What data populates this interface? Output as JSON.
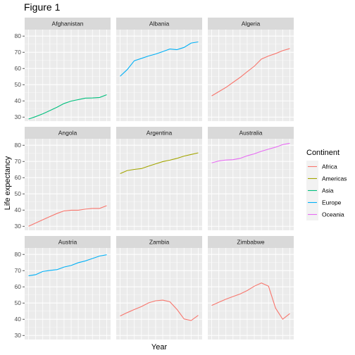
{
  "chart_data": {
    "type": "line",
    "title": "Figure 1",
    "xlabel": "Year",
    "ylabel": "Life expectancy",
    "x": [
      1952,
      1957,
      1962,
      1967,
      1972,
      1977,
      1982,
      1987,
      1992,
      1997,
      2002,
      2007
    ],
    "xlim": [
      1949.25,
      2009.75
    ],
    "ylim": [
      27.5,
      84
    ],
    "yticks": [
      30,
      40,
      50,
      60,
      70,
      80
    ],
    "grid": true,
    "legend": {
      "title": "Continent",
      "position": "right",
      "items": [
        {
          "label": "Africa",
          "color": "#F8766D"
        },
        {
          "label": "Americas",
          "color": "#A3A500"
        },
        {
          "label": "Asia",
          "color": "#00BF7D"
        },
        {
          "label": "Europe",
          "color": "#00B0F6"
        },
        {
          "label": "Oceania",
          "color": "#E76BF3"
        }
      ]
    },
    "series": [
      {
        "name": "Afghanistan",
        "continent": "Asia",
        "values": [
          28.8,
          30.3,
          32.0,
          34.0,
          36.1,
          38.4,
          39.9,
          40.8,
          41.7,
          41.8,
          42.1,
          43.8
        ]
      },
      {
        "name": "Albania",
        "continent": "Europe",
        "values": [
          55.2,
          59.3,
          64.8,
          66.2,
          67.7,
          68.9,
          70.4,
          72.0,
          71.6,
          73.0,
          75.7,
          76.4
        ]
      },
      {
        "name": "Algeria",
        "continent": "Africa",
        "values": [
          43.1,
          45.7,
          48.3,
          51.4,
          54.5,
          58.0,
          61.4,
          65.8,
          67.7,
          69.2,
          71.0,
          72.3
        ]
      },
      {
        "name": "Angola",
        "continent": "Africa",
        "values": [
          30.0,
          32.0,
          34.0,
          36.0,
          37.9,
          39.5,
          39.9,
          39.9,
          40.6,
          41.0,
          41.0,
          42.7
        ]
      },
      {
        "name": "Argentina",
        "continent": "Americas",
        "values": [
          62.5,
          64.4,
          65.1,
          65.6,
          67.1,
          68.5,
          69.9,
          70.8,
          71.9,
          73.3,
          74.3,
          75.3
        ]
      },
      {
        "name": "Australia",
        "continent": "Oceania",
        "values": [
          69.1,
          70.3,
          70.9,
          71.1,
          71.9,
          73.5,
          74.7,
          76.3,
          77.6,
          78.8,
          80.4,
          81.2
        ]
      },
      {
        "name": "Austria",
        "continent": "Europe",
        "values": [
          66.8,
          67.5,
          69.5,
          70.1,
          70.6,
          72.2,
          73.2,
          74.9,
          76.0,
          77.5,
          79.0,
          79.8
        ]
      },
      {
        "name": "Zambia",
        "continent": "Africa",
        "values": [
          42.0,
          44.1,
          46.0,
          47.8,
          50.1,
          51.4,
          51.8,
          50.8,
          46.1,
          40.2,
          39.2,
          42.4
        ]
      },
      {
        "name": "Zimbabwe",
        "continent": "Africa",
        "values": [
          48.5,
          50.5,
          52.4,
          54.0,
          55.6,
          57.7,
          60.4,
          62.4,
          60.4,
          46.8,
          40.0,
          43.5
        ]
      }
    ]
  }
}
